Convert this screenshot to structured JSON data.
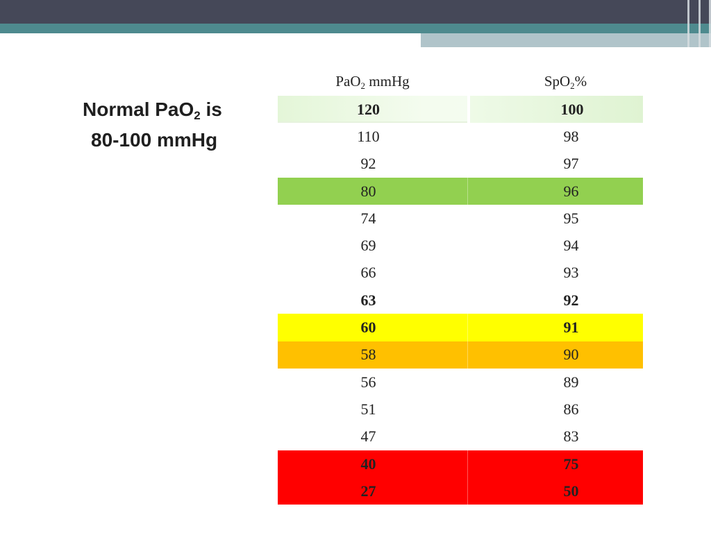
{
  "title": {
    "line1_prefix": "Normal PaO",
    "line1_sub": "2",
    "line1_suffix": " is",
    "line2": "80-100 mmHg"
  },
  "table": {
    "headers": {
      "col1_prefix": "PaO",
      "col1_sub": "2",
      "col1_suffix": " mmHg",
      "col2_prefix": "SpO",
      "col2_sub": "2",
      "col2_suffix": "%"
    },
    "rows": [
      {
        "pao2": "120",
        "spo2": "100",
        "bold": true,
        "color": "#eaf8e0"
      },
      {
        "pao2": "110",
        "spo2": "98",
        "bold": false,
        "color": "#ffffff"
      },
      {
        "pao2": "92",
        "spo2": "97",
        "bold": false,
        "color": "#ffffff"
      },
      {
        "pao2": "80",
        "spo2": "96",
        "bold": false,
        "color": "#92d050"
      },
      {
        "pao2": "74",
        "spo2": "95",
        "bold": false,
        "color": "#ffffff"
      },
      {
        "pao2": "69",
        "spo2": "94",
        "bold": false,
        "color": "#ffffff"
      },
      {
        "pao2": "66",
        "spo2": "93",
        "bold": false,
        "color": "#ffffff"
      },
      {
        "pao2": "63",
        "spo2": "92",
        "bold": true,
        "color": "#ffffff"
      },
      {
        "pao2": "60",
        "spo2": "91",
        "bold": true,
        "color": "#ffff00"
      },
      {
        "pao2": "58",
        "spo2": "90",
        "bold": false,
        "color": "#ffc000"
      },
      {
        "pao2": "56",
        "spo2": "89",
        "bold": false,
        "color": "#ffffff"
      },
      {
        "pao2": "51",
        "spo2": "86",
        "bold": false,
        "color": "#ffffff"
      },
      {
        "pao2": "47",
        "spo2": "83",
        "bold": false,
        "color": "#ffffff"
      },
      {
        "pao2": "40",
        "spo2": "75",
        "bold": true,
        "color": "#ff0000"
      },
      {
        "pao2": "27",
        "spo2": "50",
        "bold": true,
        "color": "#ff0000"
      }
    ]
  },
  "colors": {
    "topbar": "#454858",
    "accent_teal": "#4e8a8e",
    "accent_light": "#b0c4ca"
  }
}
